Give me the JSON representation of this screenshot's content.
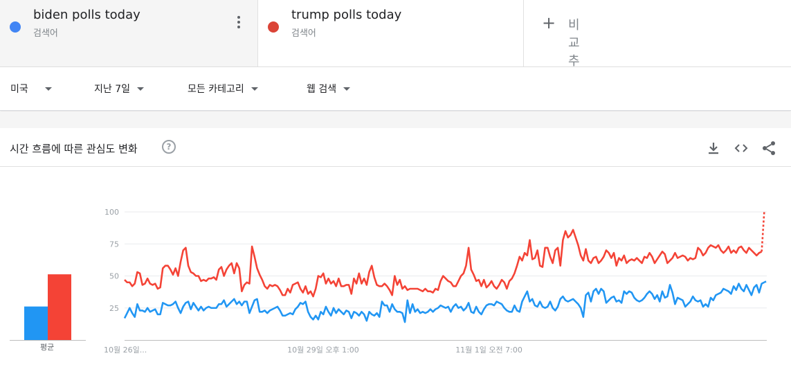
{
  "terms": [
    {
      "name": "biden polls today",
      "type": "검색어",
      "color": "#4285f4"
    },
    {
      "name": "trump polls today",
      "type": "검색어",
      "color": "#db4437"
    }
  ],
  "add_compare": "비교 추가",
  "filters": {
    "region": "미국",
    "period": "지난 7일",
    "category": "모든 카테고리",
    "search_type": "웹 검색"
  },
  "card": {
    "title": "시간 흐름에 따른 관심도 변화",
    "help": "?",
    "avg_label": "평균"
  },
  "chart_data": [
    {
      "type": "bar",
      "categories": [
        "평균"
      ],
      "series": [
        {
          "name": "biden polls today",
          "values": [
            26
          ],
          "color": "#2196f3"
        },
        {
          "name": "trump polls today",
          "values": [
            51
          ],
          "color": "#f44336"
        }
      ],
      "ylim": [
        0,
        100
      ]
    },
    {
      "type": "line",
      "yticks": [
        25,
        50,
        75,
        100
      ],
      "ylim": [
        0,
        100
      ],
      "xticks": [
        {
          "label": "10월 26일...",
          "index": 0
        },
        {
          "label": "10월 29일 오후 1:00",
          "index": 72
        },
        {
          "label": "11월 1일 오전 7:00",
          "index": 138
        }
      ],
      "grid": true,
      "partial_last_point": true,
      "series": [
        {
          "name": "biden polls today",
          "color": "#2196f3",
          "values": [
            17,
            21,
            25,
            21,
            18,
            28,
            23,
            23,
            22,
            25,
            22,
            23,
            24,
            20,
            20,
            29,
            28,
            27,
            27,
            28,
            30,
            25,
            21,
            26,
            29,
            30,
            24,
            29,
            26,
            23,
            26,
            23,
            25,
            26,
            25,
            25,
            25,
            28,
            28,
            31,
            26,
            28,
            30,
            32,
            28,
            30,
            27,
            30,
            30,
            21,
            26,
            31,
            32,
            22,
            22,
            23,
            21,
            23,
            24,
            25,
            26,
            23,
            19,
            19,
            20,
            21,
            20,
            24,
            26,
            29,
            28,
            30,
            22,
            18,
            16,
            19,
            16,
            22,
            20,
            26,
            22,
            19,
            25,
            21,
            24,
            22,
            20,
            23,
            22,
            17,
            22,
            21,
            19,
            22,
            20,
            15,
            22,
            20,
            19,
            21,
            18,
            30,
            27,
            27,
            22,
            28,
            24,
            22,
            22,
            21,
            14,
            31,
            21,
            28,
            22,
            24,
            21,
            22,
            21,
            22,
            24,
            22,
            24,
            25,
            27,
            26,
            25,
            26,
            22,
            26,
            28,
            25,
            26,
            23,
            25,
            29,
            22,
            21,
            26,
            22,
            20,
            24,
            27,
            28,
            28,
            27,
            30,
            29,
            28,
            25,
            23,
            22,
            22,
            27,
            23,
            22,
            30,
            34,
            38,
            30,
            32,
            27,
            26,
            30,
            26,
            25,
            26,
            30,
            25,
            23,
            26,
            32,
            34,
            31,
            30,
            31,
            32,
            30,
            28,
            25,
            18,
            35,
            37,
            30,
            38,
            40,
            36,
            40,
            38,
            29,
            31,
            33,
            34,
            30,
            31,
            29,
            38,
            36,
            38,
            37,
            33,
            31,
            30,
            31,
            33,
            36,
            38,
            36,
            32,
            35,
            30,
            38,
            33,
            34,
            43,
            37,
            28,
            33,
            32,
            31,
            26,
            28,
            30,
            34,
            31,
            30,
            31,
            26,
            28,
            26,
            33,
            31,
            35,
            36,
            37,
            40,
            39,
            38,
            36,
            42,
            39,
            44,
            40,
            38,
            43,
            39,
            35,
            41,
            43,
            37,
            44,
            45,
            46
          ]
        },
        {
          "name": "trump polls today",
          "color": "#f44336",
          "values": [
            47,
            45,
            45,
            42,
            44,
            53,
            52,
            43,
            44,
            48,
            44,
            43,
            44,
            40,
            41,
            56,
            58,
            58,
            55,
            51,
            56,
            50,
            61,
            70,
            72,
            58,
            53,
            52,
            50,
            50,
            46,
            47,
            46,
            48,
            48,
            49,
            47,
            55,
            57,
            50,
            55,
            58,
            60,
            52,
            60,
            56,
            38,
            43,
            45,
            44,
            73,
            65,
            56,
            51,
            47,
            42,
            40,
            43,
            42,
            43,
            42,
            39,
            35,
            35,
            40,
            37,
            43,
            44,
            45,
            40,
            37,
            42,
            36,
            38,
            34,
            40,
            50,
            49,
            52,
            44,
            48,
            44,
            46,
            42,
            48,
            42,
            42,
            43,
            43,
            36,
            48,
            44,
            52,
            44,
            48,
            43,
            53,
            58,
            49,
            43,
            42,
            42,
            44,
            42,
            39,
            35,
            50,
            43,
            47,
            40,
            42,
            39,
            40,
            40,
            40,
            40,
            39,
            38,
            40,
            38,
            38,
            37,
            40,
            39,
            46,
            50,
            48,
            46,
            45,
            42,
            42,
            46,
            50,
            52,
            58,
            72,
            55,
            51,
            46,
            47,
            42,
            47,
            41,
            43,
            46,
            42,
            40,
            43,
            47,
            45,
            40,
            46,
            48,
            52,
            58,
            65,
            62,
            68,
            66,
            78,
            63,
            64,
            70,
            58,
            57,
            72,
            72,
            65,
            60,
            70,
            72,
            58,
            78,
            85,
            80,
            82,
            86,
            80,
            74,
            66,
            62,
            71,
            62,
            60,
            64,
            65,
            60,
            62,
            65,
            70,
            68,
            64,
            68,
            58,
            64,
            62,
            66,
            60,
            62,
            63,
            62,
            64,
            62,
            60,
            65,
            64,
            68,
            65,
            60,
            63,
            66,
            69,
            67,
            60,
            62,
            64,
            68,
            64,
            65,
            66,
            65,
            62,
            64,
            63,
            64,
            72,
            70,
            66,
            68,
            72,
            74,
            73,
            72,
            74,
            70,
            68,
            70,
            73,
            68,
            70,
            68,
            72,
            73,
            70,
            68,
            72,
            70,
            68,
            66,
            68,
            69,
            100
          ]
        }
      ]
    }
  ]
}
